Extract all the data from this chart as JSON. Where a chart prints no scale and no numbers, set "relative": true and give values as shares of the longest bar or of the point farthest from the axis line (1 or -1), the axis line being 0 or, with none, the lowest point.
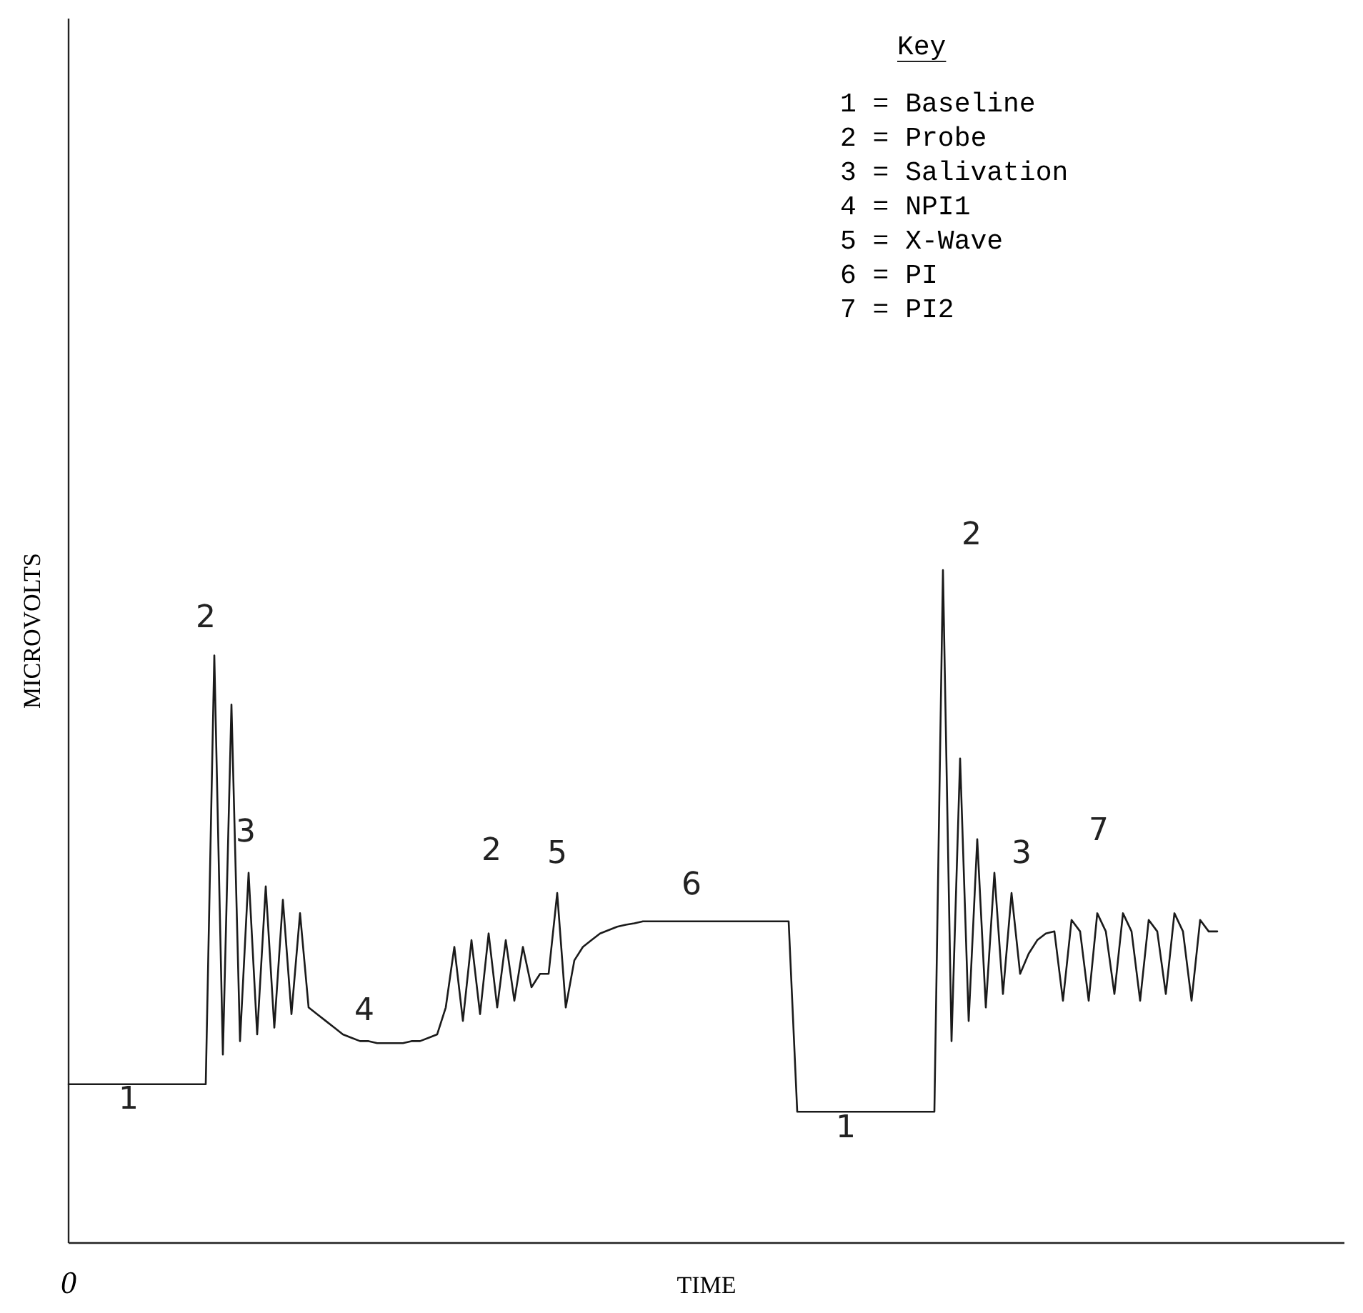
{
  "chart_data": {
    "type": "line",
    "relative": true,
    "xlabel": "TIME",
    "ylabel": "MICROVOLTS",
    "legend_title": "Key",
    "marker": "none",
    "line_style": "solid",
    "categories": [
      null,
      null,
      null,
      null,
      null,
      null,
      null,
      null,
      null,
      null,
      null,
      null,
      null,
      null,
      null,
      null,
      null,
      null,
      null,
      null,
      null,
      null,
      null,
      null,
      null,
      null,
      null,
      null,
      null,
      null,
      null,
      null,
      null,
      null,
      null,
      null,
      null,
      null,
      null,
      null,
      null,
      null,
      null,
      null,
      null,
      null,
      null,
      null,
      null,
      null,
      null,
      null,
      null,
      null,
      null,
      null,
      null,
      null,
      null,
      null,
      null,
      null,
      null,
      null,
      null,
      null,
      null,
      null,
      null,
      null,
      null,
      null,
      null,
      null,
      null,
      null,
      null,
      null,
      null,
      null,
      null,
      null,
      null,
      null,
      null,
      null,
      null,
      null,
      null,
      null,
      null,
      null,
      null,
      null,
      null,
      null,
      null,
      null,
      null,
      null,
      null,
      null,
      null,
      null,
      null,
      null,
      null,
      null,
      null,
      null,
      null,
      null,
      null,
      null,
      null,
      null,
      null,
      null,
      null,
      null,
      null,
      null,
      null,
      null,
      null,
      null,
      null,
      null,
      null,
      null,
      null,
      null,
      null,
      null,
      null
    ],
    "series": [
      {
        "color": "#1a1a1a",
        "values": [
          0.236,
          0.236,
          0.236,
          0.236,
          0.236,
          0.236,
          0.236,
          0.236,
          0.236,
          0.236,
          0.236,
          0.236,
          0.236,
          0.236,
          0.236,
          0.236,
          0.236,
          0.873,
          0.28,
          0.8,
          0.3,
          0.55,
          0.31,
          0.53,
          0.32,
          0.51,
          0.34,
          0.49,
          0.35,
          0.34,
          0.33,
          0.32,
          0.31,
          0.305,
          0.3,
          0.3,
          0.297,
          0.297,
          0.297,
          0.297,
          0.3,
          0.3,
          0.305,
          0.31,
          0.35,
          0.44,
          0.33,
          0.45,
          0.34,
          0.46,
          0.35,
          0.45,
          0.36,
          0.44,
          0.38,
          0.4,
          0.4,
          0.52,
          0.35,
          0.42,
          0.44,
          0.45,
          0.46,
          0.465,
          0.47,
          0.473,
          0.475,
          0.478,
          0.478,
          0.478,
          0.478,
          0.478,
          0.478,
          0.478,
          0.478,
          0.478,
          0.478,
          0.478,
          0.478,
          0.478,
          0.478,
          0.478,
          0.478,
          0.478,
          0.478,
          0.195,
          0.195,
          0.195,
          0.195,
          0.195,
          0.195,
          0.195,
          0.195,
          0.195,
          0.195,
          0.195,
          0.195,
          0.195,
          0.195,
          0.195,
          0.195,
          0.195,
          1,
          0.3,
          0.72,
          0.33,
          0.6,
          0.35,
          0.55,
          0.37,
          0.52,
          0.4,
          0.43,
          0.45,
          0.46,
          0.463,
          0.36,
          0.48,
          0.463,
          0.36,
          0.49,
          0.463,
          0.37,
          0.49,
          0.463,
          0.36,
          0.48,
          0.463,
          0.37,
          0.49,
          0.463,
          0.36,
          0.48,
          0.463,
          0.463
        ]
      }
    ],
    "annotations": [
      "1",
      "2",
      "3",
      "4",
      "2",
      "5",
      "6",
      "1",
      "2",
      "3",
      "7",
      "0",
      "1 = Baseline",
      "2 = Probe",
      "3 = Salivation",
      "4 = NPI1",
      "5 = X-Wave",
      "6 = PI",
      "7 = PI2"
    ]
  }
}
